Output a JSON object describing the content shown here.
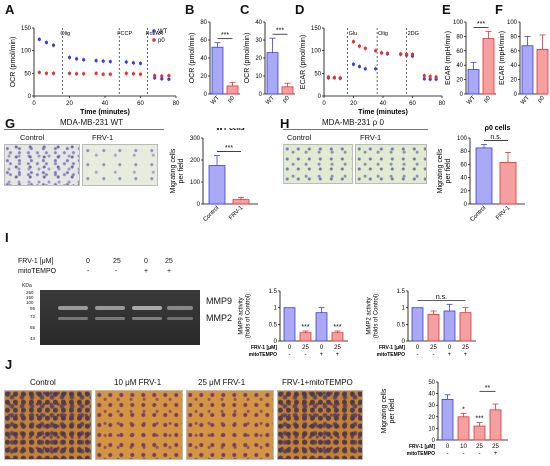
{
  "panel_labels": {
    "A": "A",
    "B": "B",
    "C": "C",
    "D": "D",
    "E": "E",
    "F": "F",
    "G": "G",
    "H": "H",
    "I": "I",
    "J": "J"
  },
  "colors": {
    "wt": "#3b3fe0",
    "p0": "#e83030",
    "wt_bar": "#a9a9f5",
    "p0_bar": "#f4a0a0"
  },
  "chart_data": [
    {
      "id": "A",
      "type": "line",
      "xlabel": "Time (minutes)",
      "ylabel": "OCR (pmol/min)",
      "xlim": [
        0,
        80
      ],
      "ylim": [
        0,
        150
      ],
      "xticks": [
        0,
        20,
        40,
        60,
        80
      ],
      "yticks": [
        0,
        50,
        100,
        150
      ],
      "legend": "top-right",
      "annotations": [
        "Olig",
        "FCCP",
        "Rot/AA"
      ],
      "series": [
        {
          "name": "WT",
          "x": [
            3,
            7,
            11,
            20,
            24,
            28,
            35,
            39,
            43,
            52,
            56,
            60,
            68,
            72,
            76
          ],
          "y": [
            125,
            118,
            112,
            85,
            82,
            80,
            78,
            77,
            76,
            75,
            73,
            72,
            40,
            38,
            37
          ]
        },
        {
          "name": "p0",
          "x": [
            3,
            7,
            11,
            20,
            24,
            28,
            35,
            39,
            43,
            52,
            56,
            60,
            68,
            72,
            76
          ],
          "y": [
            52,
            50,
            50,
            50,
            49,
            49,
            50,
            48,
            48,
            50,
            49,
            48,
            45,
            44,
            45
          ]
        }
      ]
    },
    {
      "id": "B",
      "type": "bar",
      "ylabel": "OCR (pmol/min)",
      "categories": [
        "WT",
        "p0"
      ],
      "values": [
        52,
        9
      ],
      "errors": [
        5,
        4
      ],
      "ylim": [
        0,
        80
      ],
      "yticks": [
        0,
        20,
        40,
        60,
        80
      ],
      "sig": "***"
    },
    {
      "id": "C",
      "type": "bar",
      "ylabel": "OCR (pmol/min)",
      "categories": [
        "WT",
        "p0"
      ],
      "values": [
        23,
        4
      ],
      "errors": [
        8,
        2
      ],
      "ylim": [
        0,
        40
      ],
      "yticks": [
        0,
        10,
        20,
        30,
        40
      ],
      "sig": "***"
    },
    {
      "id": "D",
      "type": "line",
      "xlabel": "Time (minutes)",
      "ylabel": "ECAR (pmol/min)",
      "xlim": [
        0,
        80
      ],
      "ylim": [
        0,
        150
      ],
      "xticks": [
        0,
        20,
        40,
        60,
        80
      ],
      "yticks": [
        0,
        50,
        100,
        150
      ],
      "annotations": [
        "Glu",
        "Olig",
        "2DG"
      ],
      "series": [
        {
          "name": "WT",
          "x": [
            3,
            7,
            11,
            20,
            24,
            28,
            35,
            39,
            43,
            52,
            56,
            60,
            68,
            72,
            76
          ],
          "y": [
            40,
            40,
            39,
            70,
            65,
            60,
            60,
            95,
            93,
            92,
            90,
            88,
            38,
            37,
            37
          ]
        },
        {
          "name": "p0",
          "x": [
            3,
            7,
            11,
            20,
            24,
            28,
            35,
            39,
            43,
            52,
            56,
            60,
            68,
            72,
            76
          ],
          "y": [
            42,
            41,
            40,
            120,
            110,
            105,
            100,
            95,
            94,
            93,
            92,
            92,
            45,
            43,
            42
          ]
        }
      ]
    },
    {
      "id": "E",
      "type": "bar",
      "ylabel": "ECAR (mpH/min)",
      "categories": [
        "WT",
        "p0"
      ],
      "values": [
        34,
        77
      ],
      "errors": [
        10,
        10
      ],
      "ylim": [
        0,
        100
      ],
      "yticks": [
        0,
        20,
        40,
        60,
        80,
        100
      ],
      "sig": "***"
    },
    {
      "id": "F",
      "type": "bar",
      "ylabel": "ECAR (mpH/min)",
      "categories": [
        "WT",
        "p0"
      ],
      "values": [
        67,
        62
      ],
      "errors": [
        13,
        20
      ],
      "ylim": [
        0,
        100
      ],
      "yticks": [
        0,
        20,
        40,
        60,
        80,
        100
      ]
    },
    {
      "id": "G",
      "type": "bar",
      "title": "WT cells",
      "ylabel": "Migrating cells\nper field",
      "categories": [
        "Control",
        "FRV-1"
      ],
      "values": [
        175,
        20
      ],
      "errors": [
        45,
        10
      ],
      "ylim": [
        0,
        300
      ],
      "yticks": [
        0,
        100,
        200,
        300
      ],
      "sig": "***"
    },
    {
      "id": "H",
      "type": "bar",
      "title": "ρ0 cells",
      "ylabel": "Migrating cells\nper field",
      "categories": [
        "Control",
        "FRV-1"
      ],
      "values": [
        85,
        63
      ],
      "errors": [
        5,
        15
      ],
      "ylim": [
        0,
        100
      ],
      "yticks": [
        0,
        20,
        40,
        60,
        80,
        100
      ],
      "sig": "n.s."
    },
    {
      "id": "I1",
      "type": "bar",
      "ylabel": "MMP9 activity\n(folds of Control)",
      "categories": [
        "0",
        "25",
        "0",
        "25"
      ],
      "mito": [
        "-",
        "-",
        "+",
        "+"
      ],
      "values": [
        1.0,
        0.25,
        0.85,
        0.25
      ],
      "errors": [
        0,
        0.05,
        0.15,
        0.05
      ],
      "ylim": [
        0,
        1.5
      ],
      "yticks": [
        0.0,
        0.5,
        1.0,
        1.5
      ],
      "sigs": [
        "",
        "***",
        "",
        "***"
      ]
    },
    {
      "id": "I2",
      "type": "bar",
      "ylabel": "MMP2 activity\n(folds of Control)",
      "categories": [
        "0",
        "25",
        "0",
        "25"
      ],
      "mito": [
        "-",
        "-",
        "+",
        "+"
      ],
      "values": [
        1.0,
        0.8,
        0.9,
        0.85
      ],
      "errors": [
        0,
        0.1,
        0.2,
        0.15
      ],
      "ylim": [
        0,
        1.5
      ],
      "yticks": [
        0.0,
        0.5,
        1.0,
        1.5
      ],
      "sig": "n.s."
    },
    {
      "id": "J",
      "type": "bar",
      "ylabel": "Migrating cells\nper field",
      "categories": [
        "0",
        "10",
        "25",
        "25"
      ],
      "mito": [
        "-",
        "-",
        "-",
        "+"
      ],
      "values": [
        35,
        20,
        12,
        26
      ],
      "errors": [
        4,
        3,
        3,
        5
      ],
      "ylim": [
        0,
        50
      ],
      "yticks": [
        0,
        10,
        20,
        30,
        40,
        50
      ],
      "sigs": [
        "",
        "*",
        "***",
        ""
      ],
      "bracket": "**"
    }
  ],
  "text": {
    "g_title": "MDA-MB-231 WT",
    "g_control": "Control",
    "g_frv": "FRV-1",
    "h_title": "MDA-MB-231 ρ 0",
    "h_control": "Control",
    "h_frv": "FRV-1",
    "i_frv": "FRV-1 [μM]",
    "i_mito": "mitoTEMPO",
    "i_doses": [
      "0",
      "25",
      "0",
      "25"
    ],
    "i_mitos": [
      "-",
      "-",
      "+",
      "+"
    ],
    "i_kda": "KDa",
    "i_markers": [
      "250",
      "150",
      "100",
      "95",
      "72",
      "55",
      "43"
    ],
    "mmp9": "MMP9",
    "mmp2": "MMP2",
    "j_imgs": [
      "Control",
      "10 μM FRV-1",
      "25 μM FRV-1",
      "FRV-1+mitoTEMPO"
    ],
    "frv_row": "FRV-1 [μM]",
    "mito_row": "mitoTEMPO"
  }
}
